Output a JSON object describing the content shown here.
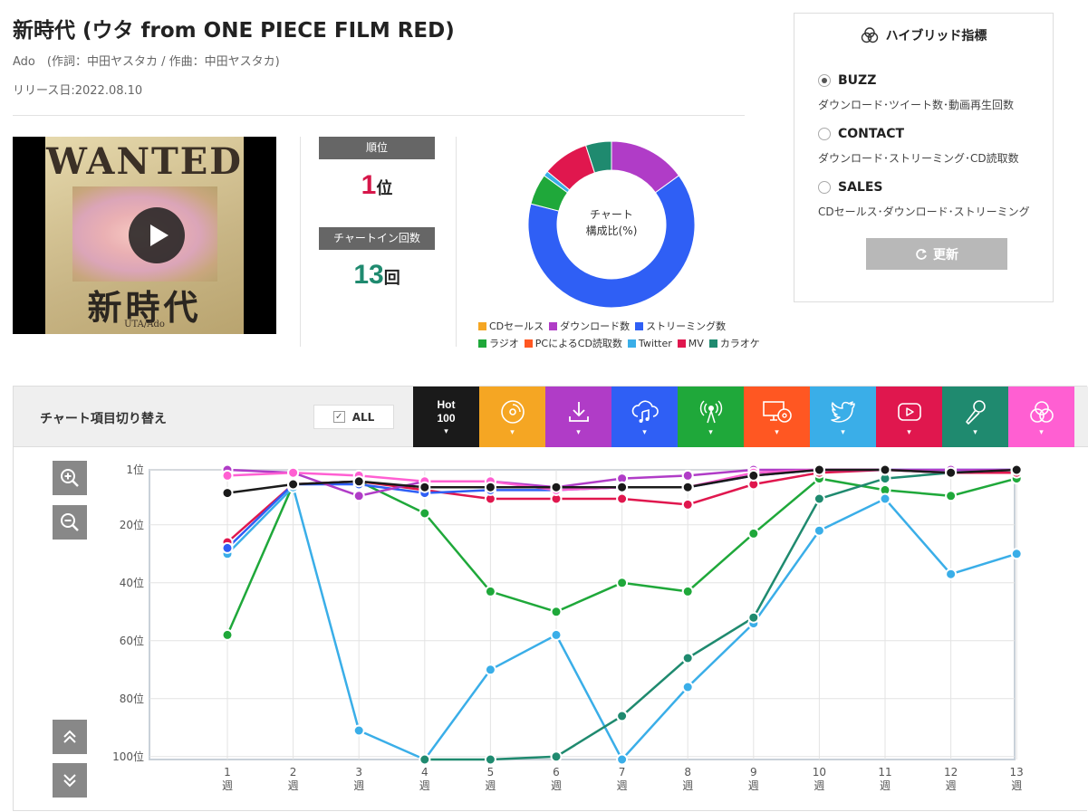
{
  "song": {
    "title": "新時代 (ウタ from ONE PIECE FILM RED)",
    "credit": "Ado　(作詞：中田ヤスタカ / 作曲：中田ヤスタカ)",
    "release": "リリース日:2022.08.10"
  },
  "thumbnail": {
    "poster_heading": "WANTED",
    "poster_title": "新時代",
    "poster_sub": "UTA/Ado",
    "play_icon": "play-icon"
  },
  "stats": {
    "rank_label": "順位",
    "rank_value": "1",
    "rank_unit": "位",
    "rank_color": "#d6174a",
    "chartin_label": "チャートイン回数",
    "chartin_value": "13",
    "chartin_unit": "回",
    "chartin_color": "#1f8a6f"
  },
  "composition": {
    "center_line1": "チャート",
    "center_line2": "構成比(%)",
    "slices": [
      {
        "name": "CDセールス",
        "value": 0,
        "color": "#f5a623"
      },
      {
        "name": "ダウンロード数",
        "value": 15,
        "color": "#b03cc7"
      },
      {
        "name": "ストリーミング数",
        "value": 64,
        "color": "#2f5ff5"
      },
      {
        "name": "ラジオ",
        "value": 6,
        "color": "#1fa83a"
      },
      {
        "name": "PCによるCD読取数",
        "value": 0,
        "color": "#ff5722"
      },
      {
        "name": "Twitter",
        "value": 1,
        "color": "#3aaee8"
      },
      {
        "name": "MV",
        "value": 9,
        "color": "#e0174e"
      },
      {
        "name": "カラオケ",
        "value": 5,
        "color": "#1f8a6f"
      }
    ],
    "legend_row1": [
      "CDセールス",
      "ダウンロード数",
      "ストリーミング数"
    ],
    "legend_row2": [
      "ラジオ",
      "PCによるCD読取数",
      "Twitter",
      "MV",
      "カラオケ"
    ]
  },
  "hybrid": {
    "title": "ハイブリッド指標",
    "icon": "venn-icon",
    "options": [
      {
        "label": "BUZZ",
        "desc": "ダウンロード･ツイート数･動画再生回数",
        "selected": true
      },
      {
        "label": "CONTACT",
        "desc": "ダウンロード･ストリーミング･CD読取数",
        "selected": false
      },
      {
        "label": "SALES",
        "desc": "CDセールス･ダウンロード･ストリーミング",
        "selected": false
      }
    ],
    "update_label": "更新",
    "update_icon": "refresh-icon"
  },
  "chart_switch": {
    "label": "チャート項目切り替え",
    "all_label": "ALL",
    "all_checked": true,
    "tabs": [
      {
        "name": "Hot 100",
        "line1": "Hot",
        "line2": "100",
        "color": "#1a1a1a",
        "icon": "hot100-text"
      },
      {
        "name": "CDセールス",
        "color": "#f5a623",
        "icon": "cd-icon"
      },
      {
        "name": "ダウンロード数",
        "color": "#b03cc7",
        "icon": "download-icon"
      },
      {
        "name": "ストリーミング数",
        "color": "#2f5ff5",
        "icon": "cloud-music-icon"
      },
      {
        "name": "ラジオ",
        "color": "#1fa83a",
        "icon": "radio-icon"
      },
      {
        "name": "PCによるCD読取数",
        "color": "#ff5722",
        "icon": "pc-cd-icon"
      },
      {
        "name": "Twitter",
        "color": "#3aaee8",
        "icon": "twitter-icon"
      },
      {
        "name": "MV",
        "color": "#e0174e",
        "icon": "youtube-icon"
      },
      {
        "name": "カラオケ",
        "color": "#1f8a6f",
        "icon": "microphone-icon"
      },
      {
        "name": "ハイブリッド指標",
        "color": "#ff5fd2",
        "icon": "venn-icon"
      }
    ]
  },
  "controls": {
    "zoom_in_icon": "zoom-in-icon",
    "zoom_out_icon": "zoom-out-icon",
    "scroll_up_icon": "chevron-double-up-icon",
    "scroll_down_icon": "chevron-double-down-icon"
  },
  "chart_data": {
    "type": "line",
    "title": "",
    "xlabel": "",
    "ylabel": "",
    "x": [
      1,
      2,
      3,
      4,
      5,
      6,
      7,
      8,
      9,
      10,
      11,
      12,
      13
    ],
    "x_tick_labels": [
      "1週",
      "2週",
      "3週",
      "4週",
      "5週",
      "6週",
      "7週",
      "8週",
      "9週",
      "10週",
      "11週",
      "12週",
      "13週"
    ],
    "y_ticks": [
      1,
      20,
      40,
      60,
      80,
      100
    ],
    "y_tick_labels": [
      "1位",
      "20位",
      "40位",
      "60位",
      "80位",
      "100位"
    ],
    "ylim": [
      1,
      101
    ],
    "y_inverted": true,
    "grid": true,
    "series": [
      {
        "name": "ラジオ",
        "color": "#1fa83a",
        "values": [
          58,
          6,
          5,
          16,
          43,
          50,
          40,
          43,
          23,
          4,
          8,
          10,
          4
        ]
      },
      {
        "name": "Twitter",
        "color": "#3aaee8",
        "values": [
          30,
          7,
          91,
          101,
          70,
          58,
          101,
          76,
          54,
          22,
          11,
          37,
          30
        ]
      },
      {
        "name": "カラオケ",
        "color": "#1f8a6f",
        "values": [
          null,
          null,
          null,
          101,
          101,
          100,
          86,
          66,
          52,
          11,
          4,
          2,
          1
        ]
      },
      {
        "name": "MV",
        "color": "#e0174e",
        "values": [
          26,
          6,
          5,
          8,
          11,
          11,
          11,
          13,
          6,
          2,
          1,
          2,
          2
        ]
      },
      {
        "name": "ストリーミング数",
        "color": "#2f5ff5",
        "values": [
          28,
          6,
          6,
          9,
          8,
          8,
          7,
          7,
          3,
          1,
          1,
          1,
          1
        ]
      },
      {
        "name": "ダウンロード数",
        "color": "#b03cc7",
        "values": [
          1,
          2,
          10,
          5,
          5,
          7,
          4,
          3,
          1,
          1,
          1,
          1,
          1
        ]
      },
      {
        "name": "ハイブリッド指標",
        "color": "#ff5fd2",
        "values": [
          3,
          2,
          3,
          5,
          5,
          8,
          7,
          7,
          2,
          1,
          1,
          2,
          1
        ]
      },
      {
        "name": "Hot 100",
        "color": "#1a1a1a",
        "values": [
          9,
          6,
          5,
          7,
          7,
          7,
          7,
          7,
          3,
          1,
          1,
          2,
          1
        ]
      }
    ]
  }
}
